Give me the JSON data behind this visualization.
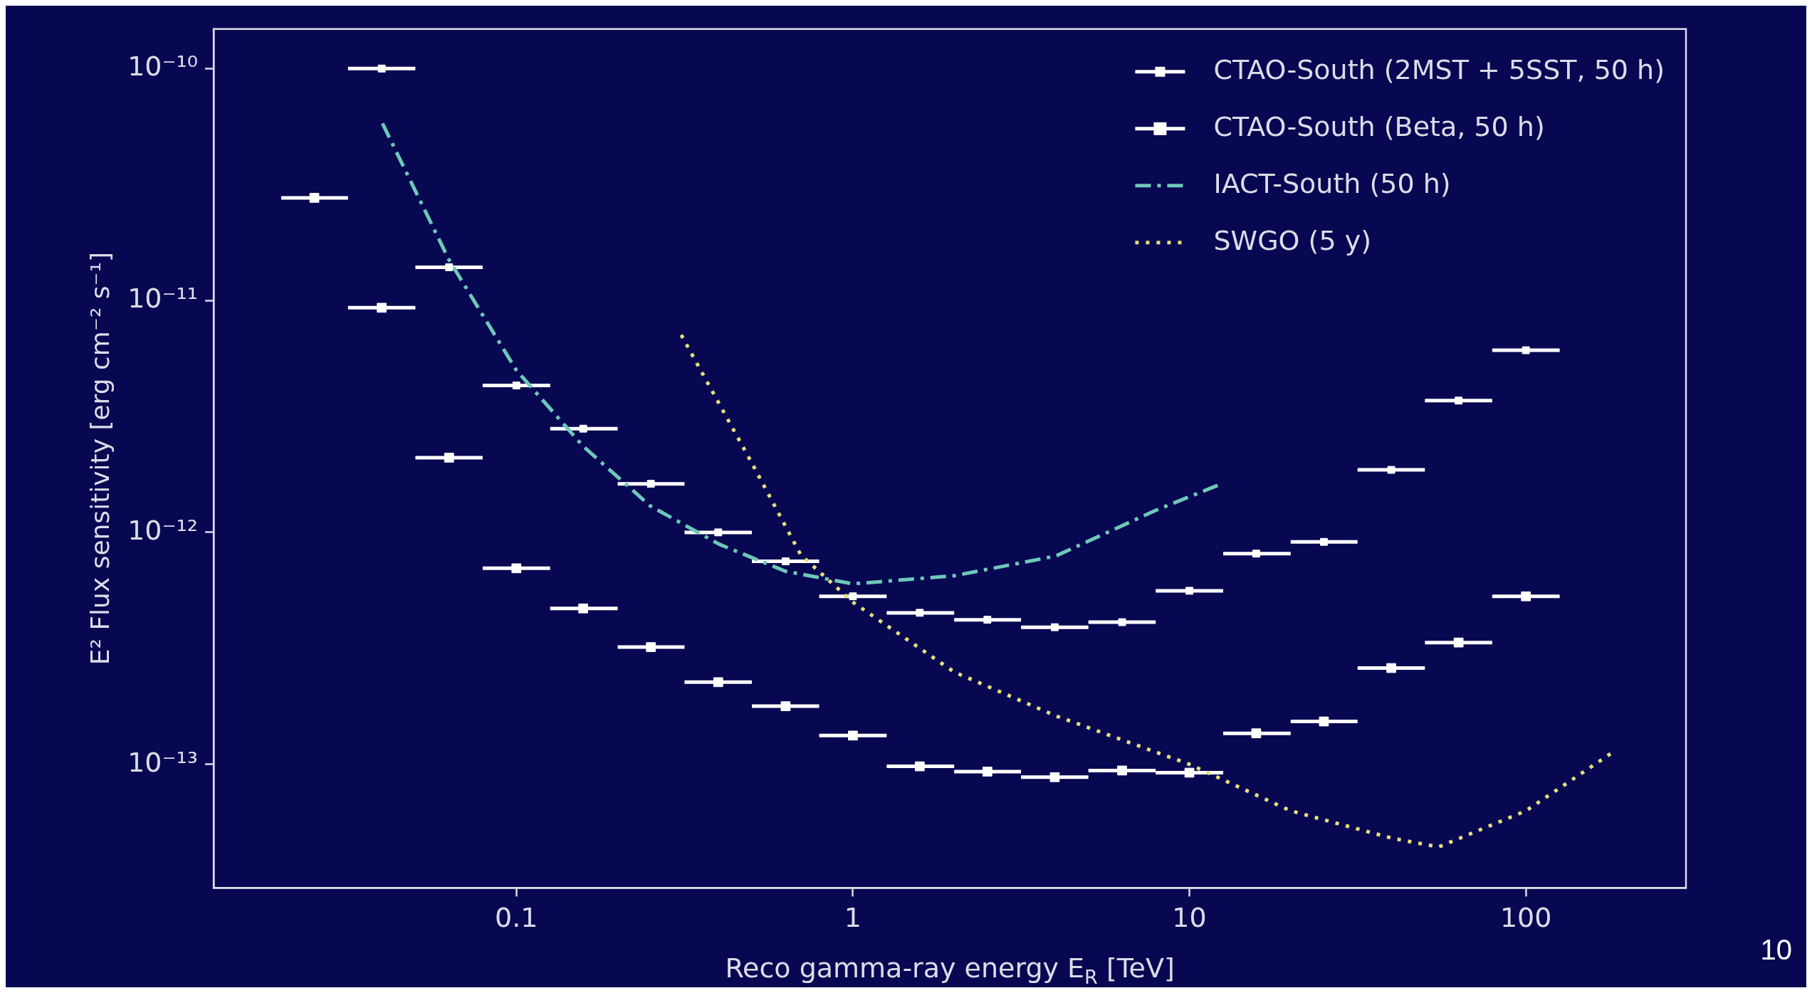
{
  "chart_data": {
    "type": "scatter",
    "xlabel": "Reco gamma-ray energy E$_{R}$ [TeV]",
    "ylabel": "E² Flux sensitivity [erg cm⁻² s⁻¹]",
    "log": "xy",
    "xlim": [
      0.0126,
      299
    ],
    "ylim": [
      2.93e-14,
      1.48e-10
    ],
    "xticks": [
      0.1,
      1,
      10,
      100
    ],
    "yticks": [
      {
        "value": 1e-13,
        "label": "10⁻¹³"
      },
      {
        "value": 1e-12,
        "label": "10⁻¹²"
      },
      {
        "value": 1e-11,
        "label": "10⁻¹¹"
      },
      {
        "value": 1e-10,
        "label": "10⁻¹⁰"
      }
    ],
    "legend": "top right",
    "marker": "square",
    "annotations": [
      "10"
    ],
    "series": [
      {
        "name": "CTAO-South (2MST + 5SST, 50 h)",
        "color": "#ffffff",
        "x": [
          0.0398,
          0.0631,
          0.1,
          0.158,
          0.251,
          0.398,
          0.631,
          1,
          1.58,
          2.51,
          3.98,
          6.31,
          10,
          15.8,
          25.1,
          39.8,
          63.1,
          100
        ],
        "values": [
          1e-10,
          1.39e-11,
          4.3e-12,
          2.8e-12,
          1.62e-12,
          1e-12,
          7.5e-13,
          5.3e-13,
          4.5e-13,
          4.2e-13,
          3.9e-13,
          4.1e-13,
          5.6e-13,
          8.1e-13,
          9.1e-13,
          1.86e-12,
          3.7e-12,
          6.1e-12
        ],
        "xerrors": [
          [
            0.0316,
            0.0501
          ],
          [
            0.0501,
            0.0794
          ],
          [
            0.0794,
            0.126
          ],
          [
            0.126,
            0.2
          ],
          [
            0.2,
            0.316
          ],
          [
            0.316,
            0.501
          ],
          [
            0.501,
            0.794
          ],
          [
            0.794,
            1.26
          ],
          [
            1.26,
            2
          ],
          [
            2,
            3.16
          ],
          [
            3.16,
            5.01
          ],
          [
            5.01,
            7.94
          ],
          [
            7.94,
            12.6
          ],
          [
            12.6,
            20
          ],
          [
            20,
            31.6
          ],
          [
            31.6,
            50.1
          ],
          [
            50.1,
            79.4
          ],
          [
            79.4,
            126
          ]
        ]
      },
      {
        "name": "CTAO-South (Beta, 50 h)",
        "color": "#ffffff",
        "x": [
          0.0251,
          0.0398,
          0.0631,
          0.1,
          0.158,
          0.251,
          0.398,
          0.631,
          1,
          1.58,
          2.51,
          3.98,
          6.31,
          10,
          15.8,
          25.1,
          39.8,
          63.1,
          100
        ],
        "values": [
          2.77e-11,
          9.3e-12,
          2.1e-12,
          7e-13,
          4.7e-13,
          3.2e-13,
          2.26e-13,
          1.78e-13,
          1.33e-13,
          9.8e-14,
          9.3e-14,
          8.8e-14,
          9.4e-14,
          9.2e-14,
          1.36e-13,
          1.53e-13,
          2.6e-13,
          3.35e-13,
          5.3e-13
        ],
        "xerrors": [
          [
            0.02,
            0.0316
          ],
          [
            0.0316,
            0.0501
          ],
          [
            0.0501,
            0.0794
          ],
          [
            0.0794,
            0.126
          ],
          [
            0.126,
            0.2
          ],
          [
            0.2,
            0.316
          ],
          [
            0.316,
            0.501
          ],
          [
            0.501,
            0.794
          ],
          [
            0.794,
            1.26
          ],
          [
            1.26,
            2
          ],
          [
            2,
            3.16
          ],
          [
            3.16,
            5.01
          ],
          [
            5.01,
            7.94
          ],
          [
            7.94,
            12.6
          ],
          [
            12.6,
            20
          ],
          [
            20,
            31.6
          ],
          [
            31.6,
            50.1
          ],
          [
            50.1,
            79.4
          ],
          [
            79.4,
            126
          ]
        ]
      },
      {
        "name": "IACT-South (50 h)",
        "type": "line",
        "line_style": "dashed",
        "marker": "none",
        "color": "#6ec8b8",
        "x": [
          0.04,
          0.063,
          0.1,
          0.158,
          0.25,
          0.4,
          0.63,
          1,
          2,
          4,
          8,
          12.2
        ],
        "values": [
          5.8e-11,
          1.5e-11,
          5e-12,
          2.35e-12,
          1.3e-12,
          8.9e-13,
          6.8e-13,
          6e-13,
          6.5e-13,
          7.9e-13,
          1.25e-12,
          1.6e-12
        ]
      },
      {
        "name": "SWGO (5 y)",
        "type": "line",
        "line_style": "dotted",
        "marker": "none",
        "color": "#e8e07a",
        "x": [
          0.309,
          0.5,
          0.7,
          1,
          2,
          4,
          10,
          20,
          40,
          55,
          100,
          180
        ],
        "values": [
          7.1e-12,
          2e-12,
          8e-13,
          5e-13,
          2.5e-13,
          1.62e-13,
          1e-13,
          6.3e-14,
          4.8e-14,
          4.4e-14,
          6.3e-14,
          1.12e-13
        ]
      }
    ]
  }
}
